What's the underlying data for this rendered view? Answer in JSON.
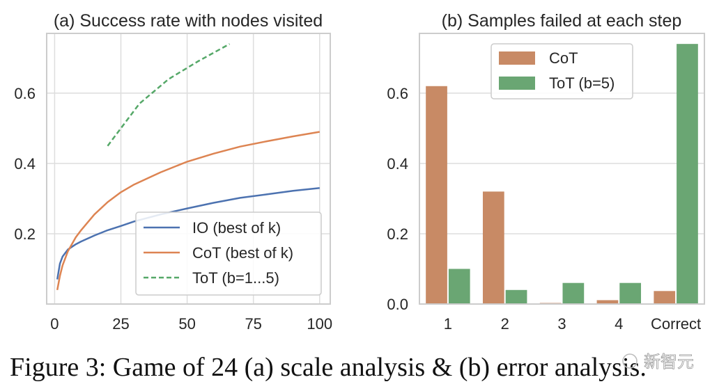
{
  "figure": {
    "caption": "Figure 3: Game of 24 (a) scale analysis & (b) error analysis.",
    "watermark": "新智元"
  },
  "chart_data": [
    {
      "type": "line",
      "title": "(a) Success rate with nodes visited",
      "xlabel": "",
      "ylabel": "",
      "xlim": [
        -3,
        104
      ],
      "ylim": [
        0,
        0.77
      ],
      "xticks": [
        "0",
        "25",
        "50",
        "75",
        "100"
      ],
      "yticks": [
        "0.2",
        "0.4",
        "0.6"
      ],
      "grid": true,
      "legend_position": "lower-right",
      "series": [
        {
          "name": "IO (best of k)",
          "color": "#4c72b0",
          "dash": "solid",
          "x": [
            1,
            2,
            3,
            5,
            8,
            10,
            15,
            20,
            25,
            30,
            40,
            50,
            60,
            70,
            80,
            90,
            100
          ],
          "y": [
            0.07,
            0.115,
            0.135,
            0.155,
            0.17,
            0.178,
            0.195,
            0.21,
            0.222,
            0.235,
            0.255,
            0.272,
            0.288,
            0.302,
            0.312,
            0.322,
            0.33
          ]
        },
        {
          "name": "CoT (best of k)",
          "color": "#dd8452",
          "dash": "solid",
          "x": [
            1,
            2,
            3,
            5,
            8,
            10,
            15,
            20,
            25,
            30,
            40,
            50,
            60,
            70,
            80,
            90,
            100
          ],
          "y": [
            0.04,
            0.08,
            0.11,
            0.15,
            0.19,
            0.21,
            0.255,
            0.29,
            0.318,
            0.34,
            0.375,
            0.405,
            0.428,
            0.448,
            0.463,
            0.477,
            0.49
          ]
        },
        {
          "name": "ToT (b=1...5)",
          "color": "#55a868",
          "dash": "dashed",
          "x": [
            20,
            25,
            32,
            43,
            54,
            66
          ],
          "y": [
            0.45,
            0.5,
            0.57,
            0.64,
            0.69,
            0.74
          ]
        }
      ]
    },
    {
      "type": "bar",
      "title": "(b) Samples failed at each step",
      "xlabel": "",
      "ylabel": "",
      "categories": [
        "1",
        "2",
        "3",
        "4",
        "Correct"
      ],
      "ylim": [
        0,
        0.77
      ],
      "yticks": [
        "0.0",
        "0.2",
        "0.4",
        "0.6"
      ],
      "grid": true,
      "legend_position": "top-center",
      "series": [
        {
          "name": "CoT",
          "color": "#c88a65",
          "values": [
            0.62,
            0.32,
            0.003,
            0.011,
            0.037
          ]
        },
        {
          "name": "ToT (b=5)",
          "color": "#6aa673",
          "values": [
            0.1,
            0.04,
            0.06,
            0.06,
            0.74
          ]
        }
      ]
    }
  ]
}
